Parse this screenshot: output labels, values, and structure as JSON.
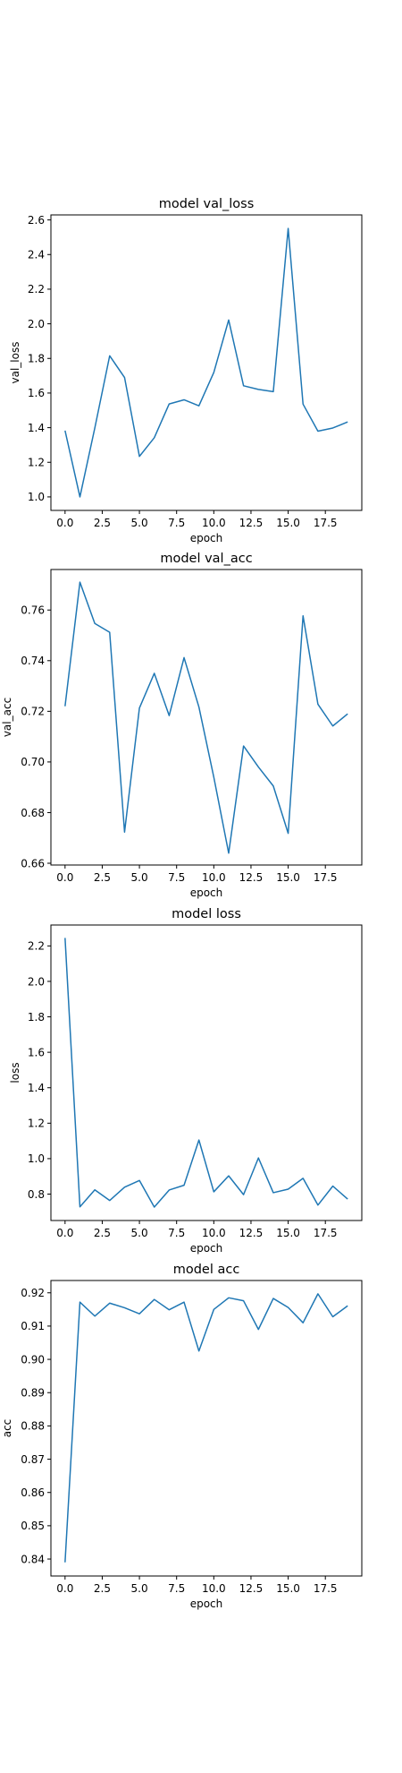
{
  "chart_data": [
    {
      "type": "line",
      "title": "model val_loss",
      "xlabel": "epoch",
      "ylabel": "val_loss",
      "xlim": [
        -0.95,
        19.95
      ],
      "ylim": [
        0.922,
        2.629
      ],
      "xticks": [
        0.0,
        2.5,
        5.0,
        7.5,
        10.0,
        12.5,
        15.0,
        17.5
      ],
      "xtick_labels": [
        "0.0",
        "2.5",
        "5.0",
        "7.5",
        "10.0",
        "12.5",
        "15.0",
        "17.5"
      ],
      "yticks": [
        1.0,
        1.2,
        1.4,
        1.6,
        1.8,
        2.0,
        2.2,
        2.4,
        2.6
      ],
      "ytick_labels": [
        "1.0",
        "1.2",
        "1.4",
        "1.6",
        "1.8",
        "2.0",
        "2.2",
        "2.4",
        "2.6"
      ],
      "grid": false,
      "color": "#1f77b4",
      "x": [
        0,
        1,
        2,
        3,
        4,
        5,
        6,
        7,
        8,
        9,
        10,
        11,
        12,
        13,
        14,
        15,
        16,
        17,
        18,
        19
      ],
      "values": [
        1.383,
        1.0,
        1.398,
        1.815,
        1.69,
        1.234,
        1.342,
        1.537,
        1.561,
        1.526,
        1.719,
        2.022,
        1.642,
        1.621,
        1.608,
        2.551,
        1.536,
        1.38,
        1.398,
        1.433
      ]
    },
    {
      "type": "line",
      "title": "model val_acc",
      "xlabel": "epoch",
      "ylabel": "val_acc",
      "xlim": [
        -0.95,
        19.95
      ],
      "ylim": [
        0.6593,
        0.776
      ],
      "xticks": [
        0.0,
        2.5,
        5.0,
        7.5,
        10.0,
        12.5,
        15.0,
        17.5
      ],
      "xtick_labels": [
        "0.0",
        "2.5",
        "5.0",
        "7.5",
        "10.0",
        "12.5",
        "15.0",
        "17.5"
      ],
      "yticks": [
        0.66,
        0.68,
        0.7,
        0.72,
        0.74,
        0.76
      ],
      "ytick_labels": [
        "0.66",
        "0.68",
        "0.70",
        "0.72",
        "0.74",
        "0.76"
      ],
      "grid": false,
      "color": "#1f77b4",
      "x": [
        0,
        1,
        2,
        3,
        4,
        5,
        6,
        7,
        8,
        9,
        10,
        11,
        12,
        13,
        14,
        15,
        16,
        17,
        18,
        19
      ],
      "values": [
        0.722,
        0.771,
        0.7547,
        0.7512,
        0.6723,
        0.7213,
        0.735,
        0.7183,
        0.7412,
        0.7217,
        0.694,
        0.664,
        0.7063,
        0.698,
        0.6905,
        0.6718,
        0.7577,
        0.7228,
        0.7142,
        0.719
      ]
    },
    {
      "type": "line",
      "title": "model loss",
      "xlabel": "epoch",
      "ylabel": "loss",
      "xlim": [
        -0.95,
        19.95
      ],
      "ylim": [
        0.651,
        2.318
      ],
      "xticks": [
        0.0,
        2.5,
        5.0,
        7.5,
        10.0,
        12.5,
        15.0,
        17.5
      ],
      "xtick_labels": [
        "0.0",
        "2.5",
        "5.0",
        "7.5",
        "10.0",
        "12.5",
        "15.0",
        "17.5"
      ],
      "yticks": [
        0.8,
        1.0,
        1.2,
        1.4,
        1.6,
        1.8,
        2.0,
        2.2
      ],
      "ytick_labels": [
        "0.8",
        "1.0",
        "1.2",
        "1.4",
        "1.6",
        "1.8",
        "2.0",
        "2.2"
      ],
      "grid": false,
      "color": "#1f77b4",
      "x": [
        0,
        1,
        2,
        3,
        4,
        5,
        6,
        7,
        8,
        9,
        10,
        11,
        12,
        13,
        14,
        15,
        16,
        17,
        18,
        19
      ],
      "values": [
        2.245,
        0.728,
        0.824,
        0.764,
        0.839,
        0.877,
        0.727,
        0.823,
        0.85,
        1.105,
        0.813,
        0.903,
        0.797,
        1.004,
        0.808,
        0.828,
        0.889,
        0.738,
        0.845,
        0.772
      ]
    },
    {
      "type": "line",
      "title": "model acc",
      "xlabel": "epoch",
      "ylabel": "acc",
      "xlim": [
        -0.95,
        19.95
      ],
      "ylim": [
        0.8349,
        0.9237
      ],
      "xticks": [
        0.0,
        2.5,
        5.0,
        7.5,
        10.0,
        12.5,
        15.0,
        17.5
      ],
      "xtick_labels": [
        "0.0",
        "2.5",
        "5.0",
        "7.5",
        "10.0",
        "12.5",
        "15.0",
        "17.5"
      ],
      "yticks": [
        0.84,
        0.85,
        0.86,
        0.87,
        0.88,
        0.89,
        0.9,
        0.91,
        0.92
      ],
      "ytick_labels": [
        "0.84",
        "0.85",
        "0.86",
        "0.87",
        "0.88",
        "0.89",
        "0.90",
        "0.91",
        "0.92"
      ],
      "grid": false,
      "color": "#1f77b4",
      "x": [
        0,
        1,
        2,
        3,
        4,
        5,
        6,
        7,
        8,
        9,
        10,
        11,
        12,
        13,
        14,
        15,
        16,
        17,
        18,
        19
      ],
      "values": [
        0.839,
        0.9172,
        0.913,
        0.9169,
        0.9155,
        0.9137,
        0.918,
        0.9149,
        0.9172,
        0.9025,
        0.915,
        0.9185,
        0.9176,
        0.909,
        0.9183,
        0.9156,
        0.911,
        0.9197,
        0.9128,
        0.9161
      ]
    }
  ]
}
